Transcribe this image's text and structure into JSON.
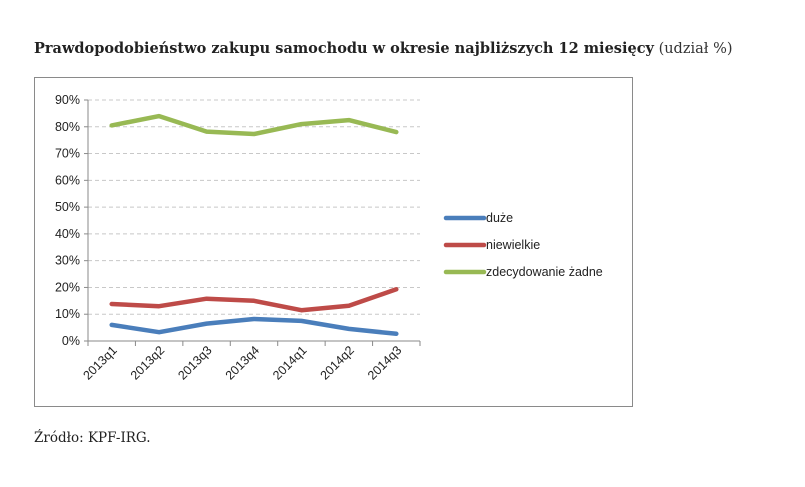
{
  "page": {
    "title": "Prawdopodobieństwo zakupu samochodu w okresie najbliższych 12 miesięcy",
    "title_unit": "(udział %)",
    "source": "Źródło: KPF-IRG."
  },
  "chart_data": {
    "type": "line",
    "title": "Prawdopodobieństwo zakupu samochodu w okresie najbliższych 12 miesięcy (udział %)",
    "xlabel": "",
    "ylabel": "",
    "categories": [
      "2013q1",
      "2013q2",
      "2013q3",
      "2013q4",
      "2014q1",
      "2014q2",
      "2014q3"
    ],
    "ylim": [
      0,
      90
    ],
    "yticks": [
      0,
      10,
      20,
      30,
      40,
      50,
      60,
      70,
      80,
      90
    ],
    "ytick_labels": [
      "0%",
      "10%",
      "20%",
      "30%",
      "40%",
      "50%",
      "60%",
      "70%",
      "80%",
      "90%"
    ],
    "grid": true,
    "legend_position": "right",
    "series": [
      {
        "name": "duże",
        "color": "#4a7ebb",
        "values": [
          6,
          3.3,
          6.5,
          8.2,
          7.5,
          4.5,
          2.7
        ]
      },
      {
        "name": "niewielkie",
        "color": "#be4b48",
        "values": [
          13.8,
          13,
          15.8,
          15,
          11.5,
          13.2,
          19.3
        ]
      },
      {
        "name": "zdecydowanie żadne",
        "color": "#98b954",
        "values": [
          80.5,
          84,
          78.2,
          77.3,
          81,
          82.5,
          78
        ]
      }
    ]
  }
}
